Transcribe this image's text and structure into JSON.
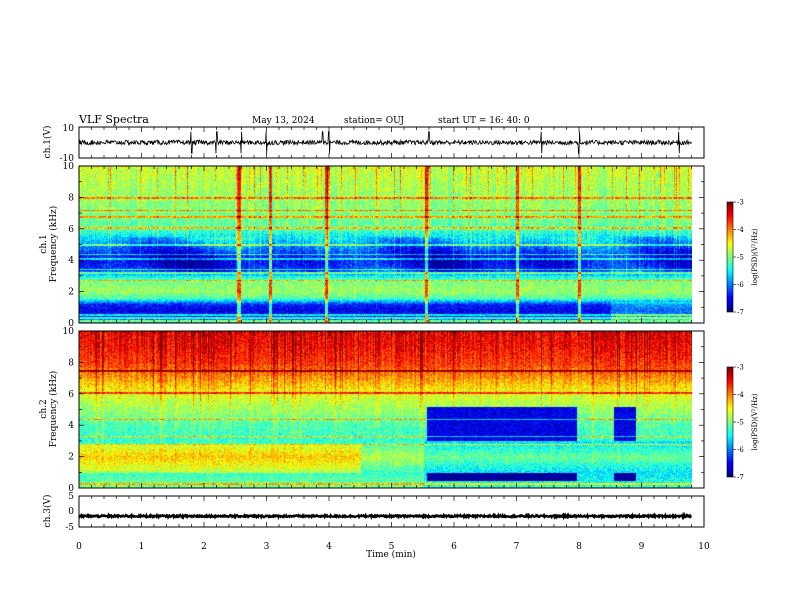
{
  "header": {
    "title": "VLF Spectra",
    "date": "May 13, 2024",
    "station": "station= OUJ",
    "start_ut": "start  UT  =   16: 40: 0"
  },
  "chart_data": {
    "type": "heatmap",
    "x": {
      "label": "Time  (min)",
      "range": [
        0,
        10
      ],
      "ticks": [
        "0",
        "1",
        "2",
        "3",
        "4",
        "5",
        "6",
        "7",
        "8",
        "9",
        "10"
      ],
      "data_end": 9.8
    },
    "panels": [
      {
        "id": "ch1_waveform",
        "kind": "line",
        "ylabel": "ch.1(V)",
        "ylim": [
          -10,
          10
        ],
        "yticks": [
          "10",
          "-10"
        ],
        "baseline": 0,
        "amplitude": 1.5,
        "spike_times": [
          1.8,
          2.2,
          2.6,
          3.0,
          3.9,
          4.0,
          5.6,
          7.4,
          8.0,
          9.6
        ]
      },
      {
        "id": "ch1_spectrogram",
        "kind": "heatmap",
        "ylabel": "ch.1\nFrequency  (kHz)",
        "ylim": [
          0,
          10
        ],
        "yticks": [
          "0",
          "2",
          "4",
          "6",
          "8",
          "10"
        ],
        "colorbar": {
          "label": "log(PSD)(V²/Hz)",
          "range": [
            -7,
            -3
          ],
          "ticks": [
            "-3",
            "-4",
            "-5",
            "-6",
            "-7"
          ]
        },
        "profile": [
          {
            "f": 0.0,
            "v": -5.6
          },
          {
            "f": 0.4,
            "v": -6.3
          },
          {
            "f": 0.8,
            "v": -6.6
          },
          {
            "f": 1.2,
            "v": -6.4
          },
          {
            "f": 1.6,
            "v": -5.2
          },
          {
            "f": 2.0,
            "v": -4.9
          },
          {
            "f": 2.6,
            "v": -5.0
          },
          {
            "f": 3.0,
            "v": -5.5
          },
          {
            "f": 3.4,
            "v": -6.4
          },
          {
            "f": 4.0,
            "v": -6.6
          },
          {
            "f": 4.6,
            "v": -6.3
          },
          {
            "f": 5.2,
            "v": -5.8
          },
          {
            "f": 6.0,
            "v": -5.2
          },
          {
            "f": 7.0,
            "v": -5.0
          },
          {
            "f": 8.0,
            "v": -4.9
          },
          {
            "f": 9.0,
            "v": -4.8
          },
          {
            "f": 10.0,
            "v": -4.7
          }
        ],
        "lines_khz": [
          0.15,
          0.35,
          0.55,
          2.75,
          3.2,
          3.45,
          4.1,
          4.4,
          5.0,
          6.1,
          6.8,
          7.2,
          8.0
        ],
        "bursts_min": [
          2.55,
          3.05,
          3.95,
          5.55,
          7.0,
          8.0
        ]
      },
      {
        "id": "ch2_spectrogram",
        "kind": "heatmap",
        "ylabel": "ch.2\nFrequency  (kHz)",
        "ylim": [
          0,
          10
        ],
        "yticks": [
          "0",
          "2",
          "4",
          "6",
          "8",
          "10"
        ],
        "colorbar": {
          "label": "log(PSD)(V²/Hz)",
          "range": [
            -7,
            -3
          ],
          "ticks": [
            "-3",
            "-4",
            "-5",
            "-6",
            "-7"
          ]
        },
        "profile": [
          {
            "f": 0.0,
            "v": -5.0
          },
          {
            "f": 1.0,
            "v": -5.3
          },
          {
            "f": 2.0,
            "v": -4.8
          },
          {
            "f": 3.0,
            "v": -5.3
          },
          {
            "f": 4.0,
            "v": -5.2
          },
          {
            "f": 5.0,
            "v": -4.9
          },
          {
            "f": 6.0,
            "v": -4.6
          },
          {
            "f": 7.0,
            "v": -4.1
          },
          {
            "f": 8.0,
            "v": -3.7
          },
          {
            "f": 9.0,
            "v": -3.5
          },
          {
            "f": 10.0,
            "v": -3.4
          }
        ],
        "low_intervals_min": [
          [
            5.55,
            7.95
          ],
          [
            8.55,
            8.9
          ]
        ],
        "low_bands_khz": [
          [
            3.0,
            5.2
          ],
          [
            0.5,
            1.0
          ]
        ],
        "lines_khz": [
          0.3,
          2.8,
          3.3,
          4.4,
          6.1,
          7.5
        ]
      },
      {
        "id": "ch3_waveform",
        "kind": "line",
        "ylabel": "ch.3(V)",
        "ylim": [
          -5,
          5
        ],
        "yticks": [
          "5",
          "0",
          "-5"
        ],
        "baseline": -1.5,
        "amplitude": 0.3
      }
    ]
  }
}
